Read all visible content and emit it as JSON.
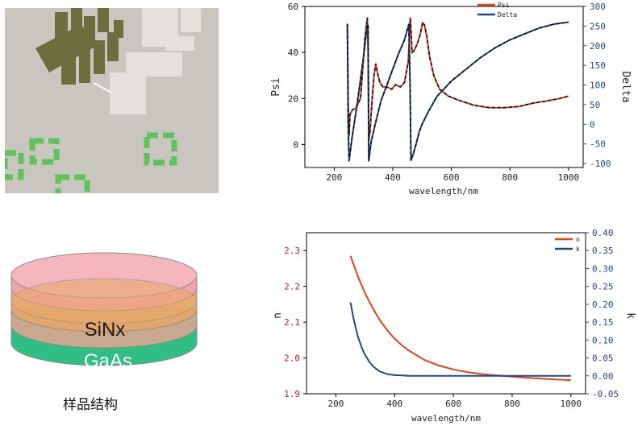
{
  "micrograph": {
    "bg": "#c9c6bf"
  },
  "sample_structure": {
    "layers": [
      "SiNx",
      "GaAs"
    ],
    "caption": "样品结构",
    "colors": {
      "top": "#f4a0a8",
      "middle": "#e8a866",
      "sinx": "#c8b09a",
      "gaas": "#2fbf84",
      "base": "#d8ecc9"
    }
  },
  "chart_data": [
    {
      "type": "line",
      "title": "",
      "xlabel": "wavelength/nm",
      "ylabel": "Psi",
      "ylabel_right": "Delta",
      "xlim": [
        100,
        1050
      ],
      "ylim": [
        -10,
        60
      ],
      "ylim_right": [
        -110,
        300
      ],
      "xticks": [
        200,
        400,
        600,
        800,
        1000
      ],
      "yticks": [
        0,
        20,
        40,
        60
      ],
      "yticks_right": [
        -100,
        -50,
        0,
        50,
        100,
        150,
        200,
        250,
        300
      ],
      "legend": "top-right",
      "series": [
        {
          "name": "Psi",
          "axis": "left",
          "color": "#e8401c",
          "x": [
            245,
            248,
            251,
            254,
            262,
            275,
            290,
            305,
            313,
            316,
            318,
            322,
            330,
            336,
            342,
            348,
            356,
            366,
            380,
            396,
            410,
            426,
            440,
            453,
            460,
            466,
            474,
            484,
            494,
            502,
            508,
            516,
            526,
            540,
            560,
            590,
            630,
            680,
            730,
            780,
            830,
            880,
            930,
            970,
            1000
          ],
          "y": [
            52,
            18,
            4,
            13,
            15,
            16,
            20,
            46,
            55,
            40,
            2,
            5,
            20,
            30,
            35,
            31,
            27,
            25,
            25,
            24,
            26,
            25,
            27,
            36,
            55,
            40,
            41,
            44,
            48,
            53,
            52,
            47,
            38,
            30,
            24,
            21,
            19,
            17,
            16,
            16,
            16.5,
            18,
            19,
            20,
            21
          ]
        },
        {
          "name": "Delta",
          "axis": "right",
          "color": "#1e4a86",
          "x": [
            245,
            248,
            251,
            260,
            280,
            300,
            313,
            316,
            318,
            326,
            340,
            360,
            380,
            400,
            420,
            440,
            455,
            459,
            462,
            470,
            480,
            490,
            500,
            520,
            550,
            600,
            650,
            700,
            750,
            800,
            850,
            900,
            950,
            1000
          ],
          "y": [
            256,
            -5,
            -93,
            -40,
            60,
            170,
            255,
            250,
            -93,
            -45,
            0,
            60,
            100,
            140,
            180,
            215,
            255,
            100,
            -92,
            -75,
            -50,
            -20,
            0,
            30,
            70,
            110,
            140,
            170,
            195,
            215,
            230,
            245,
            255,
            260
          ]
        }
      ]
    },
    {
      "type": "line",
      "title": "",
      "xlabel": "wavelength/nm",
      "ylabel": "n",
      "ylabel_right": "k",
      "xlim": [
        100,
        1050
      ],
      "ylim": [
        1.9,
        2.35
      ],
      "ylim_right": [
        -0.05,
        0.4
      ],
      "xticks": [
        200,
        400,
        600,
        800,
        1000
      ],
      "yticks": [
        1.9,
        2.0,
        2.1,
        2.2,
        2.3
      ],
      "yticks_right": [
        -0.05,
        0.0,
        0.05,
        0.1,
        0.15,
        0.2,
        0.25,
        0.3,
        0.35,
        0.4
      ],
      "legend": "top-right",
      "series": [
        {
          "name": "n",
          "axis": "left",
          "color": "#e8401c",
          "x": [
            250,
            275,
            300,
            325,
            350,
            375,
            400,
            425,
            450,
            500,
            550,
            600,
            650,
            700,
            750,
            800,
            850,
            900,
            950,
            1000
          ],
          "y": [
            2.285,
            2.228,
            2.18,
            2.14,
            2.105,
            2.077,
            2.054,
            2.035,
            2.02,
            1.995,
            1.979,
            1.968,
            1.96,
            1.955,
            1.951,
            1.948,
            1.945,
            1.942,
            1.94,
            1.938
          ]
        },
        {
          "name": "k",
          "axis": "right",
          "color": "#1e4a86",
          "x": [
            250,
            260,
            275,
            290,
            300,
            315,
            330,
            350,
            375,
            400,
            425,
            450,
            500,
            600,
            700,
            800,
            900,
            1000
          ],
          "y": [
            0.205,
            0.16,
            0.11,
            0.075,
            0.058,
            0.038,
            0.024,
            0.012,
            0.005,
            0.002,
            0.001,
            0.0,
            0.0,
            0.0,
            0.0,
            0.0,
            0.0,
            0.0
          ]
        }
      ]
    }
  ]
}
